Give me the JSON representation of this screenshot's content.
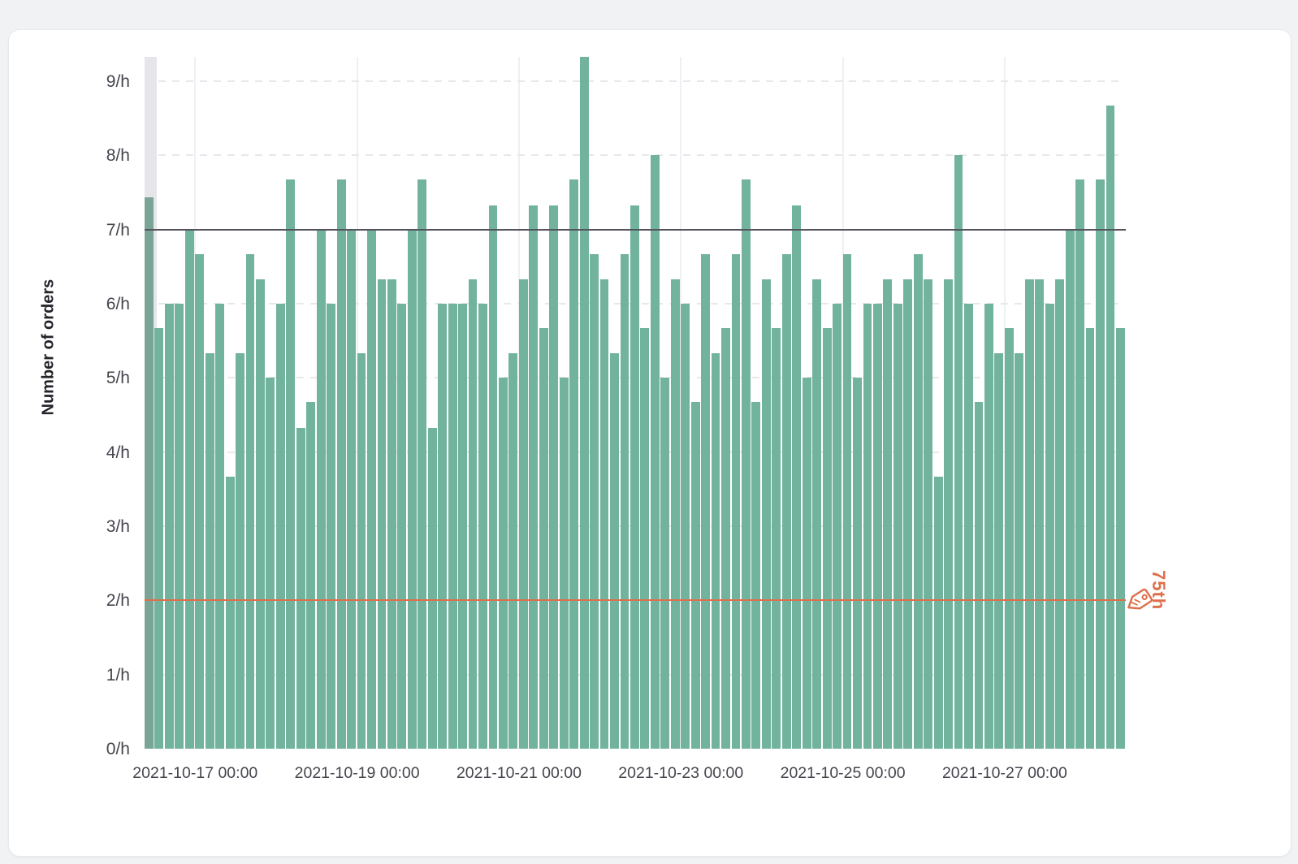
{
  "card": {
    "background": "#ffffff"
  },
  "chart_data": {
    "type": "bar",
    "title": "",
    "xlabel": "",
    "ylabel": "Number of orders",
    "y_tick_labels": [
      "0/h",
      "1/h",
      "2/h",
      "3/h",
      "4/h",
      "5/h",
      "6/h",
      "7/h",
      "8/h",
      "9/h"
    ],
    "x_tick_labels": [
      "2021-10-17 00:00",
      "2021-10-19 00:00",
      "2021-10-21 00:00",
      "2021-10-23 00:00",
      "2021-10-25 00:00",
      "2021-10-27 00:00"
    ],
    "ylim": [
      0,
      9.33
    ],
    "bucket_hours": 3,
    "values": [
      7.43,
      5.67,
      6,
      6,
      7,
      6.67,
      5.33,
      6,
      3.67,
      5.33,
      6.67,
      6.33,
      5,
      6,
      7.67,
      4.33,
      4.67,
      7,
      6,
      7.67,
      7,
      5.33,
      7,
      6.33,
      6.33,
      6,
      7,
      7.67,
      4.33,
      6,
      6,
      6,
      6.33,
      6,
      7.33,
      5,
      5.33,
      6.33,
      7.33,
      5.67,
      7.33,
      5,
      7.67,
      9.33,
      6.67,
      6.33,
      5.33,
      6.67,
      7.33,
      5.67,
      8,
      5,
      6.33,
      6,
      4.67,
      6.67,
      5.33,
      5.67,
      6.67,
      7.67,
      4.67,
      6.33,
      5.67,
      6.67,
      7.33,
      5,
      6.33,
      5.67,
      6,
      6.67,
      5,
      6,
      6,
      6.33,
      6,
      6.33,
      6.67,
      6.33,
      3.67,
      6.33,
      8,
      6,
      4.67,
      6,
      5.33,
      5.67,
      5.33,
      6.33,
      6.33,
      6,
      6.33,
      7,
      7.67,
      5.67,
      7.67,
      8.67,
      5.67
    ],
    "bar_color": "#72b39e",
    "first_bar_color": "#7aa596",
    "highlight_band_color": "#e6e6ea",
    "grid": {
      "horizontal": "dashed",
      "vertical": "solid-every-2-days"
    },
    "reference_lines": [
      {
        "value": 7,
        "color": "#55555e",
        "style": "solid",
        "label": ""
      },
      {
        "value": 2,
        "color": "#dd6f4b",
        "style": "solid",
        "label": "75th",
        "icon": "tag-icon"
      }
    ],
    "legend": null
  }
}
